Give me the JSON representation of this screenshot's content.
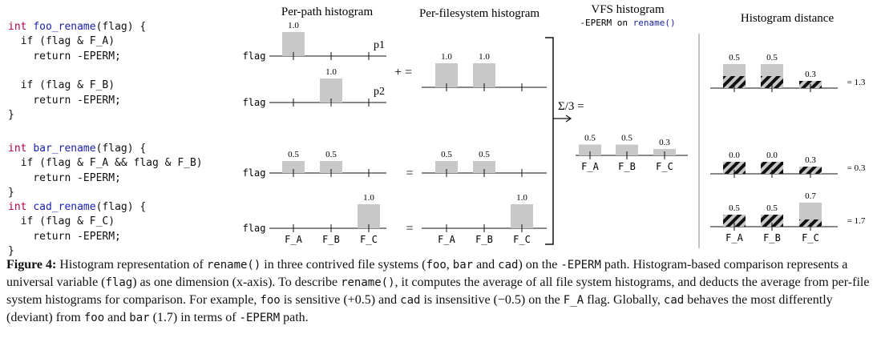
{
  "code": {
    "foo": [
      [
        {
          "t": "int ",
          "c": "kw"
        },
        {
          "t": "foo_rename",
          "c": "fn"
        },
        {
          "t": "(flag) {",
          "c": ""
        }
      ],
      [
        {
          "t": "  if (flag & F_A)",
          "c": ""
        }
      ],
      [
        {
          "t": "    return -EPERM;",
          "c": ""
        }
      ],
      [
        {
          "t": "",
          "c": ""
        }
      ],
      [
        {
          "t": "  if (flag & F_B)",
          "c": ""
        }
      ],
      [
        {
          "t": "    return -EPERM;",
          "c": ""
        }
      ],
      [
        {
          "t": "}",
          "c": ""
        }
      ]
    ],
    "bar": [
      [
        {
          "t": "int ",
          "c": "kw"
        },
        {
          "t": "bar_rename",
          "c": "fn"
        },
        {
          "t": "(flag) {",
          "c": ""
        }
      ],
      [
        {
          "t": "  if (flag & F_A && flag & F_B)",
          "c": ""
        }
      ],
      [
        {
          "t": "    return -EPERM;",
          "c": ""
        }
      ],
      [
        {
          "t": "}",
          "c": ""
        }
      ]
    ],
    "cad": [
      [
        {
          "t": "int ",
          "c": "kw"
        },
        {
          "t": "cad_rename",
          "c": "fn"
        },
        {
          "t": "(flag) {",
          "c": ""
        }
      ],
      [
        {
          "t": "  if (flag & F_C)",
          "c": ""
        }
      ],
      [
        {
          "t": "    return -EPERM;",
          "c": ""
        }
      ],
      [
        {
          "t": "}",
          "c": ""
        }
      ]
    ]
  },
  "headers": {
    "per_path": "Per-path histogram",
    "per_fs": "Per-filesystem histogram",
    "vfs": "VFS histogram",
    "vfs_sub_prefix": "-EPERM on ",
    "vfs_sub_fn": "rename()",
    "distance": "Histogram distance"
  },
  "axis_label": "flag",
  "categories": [
    "F_A",
    "F_B",
    "F_C"
  ],
  "colors": {
    "bar": "#c8c8c8",
    "axis": "#111111",
    "code_fn": "#1a22a8",
    "code_kw": "#b0004a"
  },
  "operators": {
    "plus_eq": "+ =",
    "eq": "=",
    "sigma": "Σ/3 ="
  },
  "chart_data": [
    {
      "type": "bar",
      "name": "p1",
      "categories": [
        "F_A",
        "F_B",
        "F_C"
      ],
      "values": [
        1.0,
        null,
        null
      ],
      "labels": [
        "1.0",
        "",
        ""
      ]
    },
    {
      "type": "bar",
      "name": "p2",
      "categories": [
        "F_A",
        "F_B",
        "F_C"
      ],
      "values": [
        null,
        1.0,
        null
      ],
      "labels": [
        "",
        "1.0",
        ""
      ]
    },
    {
      "type": "bar",
      "categories": [
        "F_A",
        "F_B",
        "F_C"
      ],
      "values": [
        1.0,
        1.0,
        null
      ],
      "labels": [
        "1.0",
        "1.0",
        ""
      ]
    },
    {
      "type": "bar",
      "categories": [
        "F_A",
        "F_B",
        "F_C"
      ],
      "values": [
        0.5,
        0.5,
        null
      ],
      "labels": [
        "0.5",
        "0.5",
        ""
      ]
    },
    {
      "type": "bar",
      "categories": [
        "F_A",
        "F_B",
        "F_C"
      ],
      "values": [
        0.5,
        0.5,
        null
      ],
      "labels": [
        "0.5",
        "0.5",
        ""
      ]
    },
    {
      "type": "bar",
      "categories": [
        "F_A",
        "F_B",
        "F_C"
      ],
      "values": [
        null,
        null,
        1.0
      ],
      "labels": [
        "",
        "",
        "1.0"
      ]
    },
    {
      "type": "bar",
      "categories": [
        "F_A",
        "F_B",
        "F_C"
      ],
      "values": [
        null,
        null,
        1.0
      ],
      "labels": [
        "",
        "",
        "1.0"
      ]
    },
    {
      "type": "bar",
      "categories": [
        "F_A",
        "F_B",
        "F_C"
      ],
      "values": [
        0.5,
        0.5,
        0.3
      ],
      "labels": [
        "0.5",
        "0.5",
        "0.3"
      ]
    },
    {
      "type": "bar",
      "categories": [
        "F_A",
        "F_B",
        "F_C"
      ],
      "values": [
        1.0,
        1.0,
        0.0
      ],
      "diff": [
        0.5,
        0.5,
        0.3
      ],
      "labels": [
        "0.5",
        "0.5",
        "0.3"
      ],
      "total": "= 1.3"
    },
    {
      "type": "bar",
      "categories": [
        "F_A",
        "F_B",
        "F_C"
      ],
      "values": [
        0.5,
        0.5,
        0.0
      ],
      "diff": [
        0.0,
        0.0,
        0.3
      ],
      "labels": [
        "0.0",
        "0.0",
        "0.3"
      ],
      "total": "= 0.3"
    },
    {
      "type": "bar",
      "categories": [
        "F_A",
        "F_B",
        "F_C"
      ],
      "values": [
        0.0,
        0.0,
        1.0
      ],
      "diff": [
        0.5,
        0.5,
        0.7
      ],
      "labels": [
        "0.5",
        "0.5",
        "0.7"
      ],
      "total": "= 1.7"
    }
  ],
  "caption": {
    "label": "Figure 4:",
    "s1": " Histogram representation of ",
    "m1": "rename()",
    "s2": " in three contrived file systems (",
    "m2": "foo",
    "s3": ", ",
    "m3": "bar",
    "s4": " and ",
    "m4": "cad",
    "s5": ") on the ",
    "m5": "-EPERM",
    "s6": " path. Histogram-based comparison represents a universal variable (",
    "m6": "flag",
    "s7": ") as one dimension (x-axis). To describe ",
    "m7": "rename()",
    "s8": ", it computes the average of all file system histograms, and deducts the average from per-file system histograms for comparison. For example, ",
    "m8": "foo",
    "s9": " is sensitive (+0.5) and ",
    "m9": "cad",
    "s10": " is insensitive (−0.5) on the ",
    "m10": "F_A",
    "s11": " flag. Globally, ",
    "m11": "cad",
    "s12": " behaves the most differently (deviant) from ",
    "m12": "foo",
    "s13": " and ",
    "m13": "bar",
    "s14": " (1.7) in terms of ",
    "m14": "-EPERM",
    "s15": " path."
  }
}
